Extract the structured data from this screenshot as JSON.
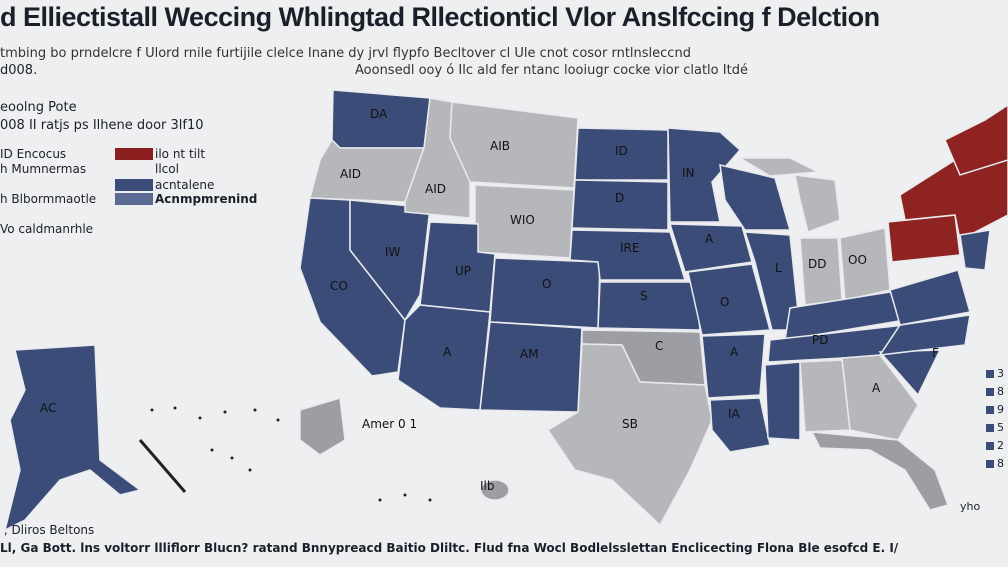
{
  "title": "d Elliectistall Weccing Whlingtad Rllectionticl Vlor Anslfccing f Delction",
  "subtitle": "tmbing bo prndelcre f Ulord rnile furtijile clelce Inane dy jrvl flypfo Becltover cl Ule cnot cosor rntlnsleccnd",
  "subtitle_line2": "Aoonsedl ooy ó Ilc ald fer ntanc looiugr cocke vior clatlo Itdé",
  "subtitle_left": "d008.",
  "legend": {
    "title": "eoolng Pote",
    "subtitle": "008 II ratjs ps Ilhene door 3lf10",
    "rows": [
      {
        "left": "ID Encocus",
        "right": "ilo nt tilt",
        "color": "#8c1f1f"
      },
      {
        "left": "h Mumnermas",
        "right": "llcol",
        "color": ""
      },
      {
        "left": "",
        "right": "acntalene",
        "color": "#3b4c78"
      },
      {
        "left": "h Blbormmaotle",
        "right": "Acnmpmrenind",
        "color": "#5b6a94"
      }
    ],
    "note": "Vo caldmanrhle"
  },
  "colors": {
    "blue": "#3b4c78",
    "blue_light": "#5d6b94",
    "gray": "#b5b7bb",
    "gray_dark": "#9c9ea3",
    "red": "#8e2321",
    "background": "#eeeff1"
  },
  "states": {
    "wa": "DA",
    "or": "AID",
    "ca": "CO",
    "id": "AID",
    "mt": "AIB",
    "nv": "IW",
    "ut": "UP",
    "az": "A",
    "wy": "WIO",
    "co": "O",
    "nm": "AM",
    "nd": "ID",
    "sd": "D",
    "ne": "IRE",
    "ks": "S",
    "ok": "C",
    "tx": "SB",
    "mn": "IN",
    "ia": "A",
    "mo": "O",
    "ar": "A",
    "la": "IA",
    "wi": "",
    "il": "L",
    "mi": "",
    "in": "DD",
    "oh": "OO",
    "ky": "",
    "tn": "PD",
    "ms": "",
    "al": "",
    "ga": "A",
    "fl": "",
    "sc": "F",
    "nc": "",
    "va": "",
    "pa": "",
    "ny": "",
    "ne_region": "",
    "ak": "AC",
    "hi": "Ilb"
  },
  "inset": {
    "label": "Amer 0 1"
  },
  "footer": " , Dliros Beltons",
  "footer2": "Ll, Ga Bott. lns voltorr llliflorr Blucn? ratand Bnnypreacd Baitio Dliltc. Flud fna Wocl Bodlelsslettan Enclicecting Flona Ble esofcd  E. I/",
  "right_legend": [
    "3",
    "8",
    "9",
    "5",
    "2",
    "8"
  ],
  "right_note": "yho",
  "right_note2": "/"
}
